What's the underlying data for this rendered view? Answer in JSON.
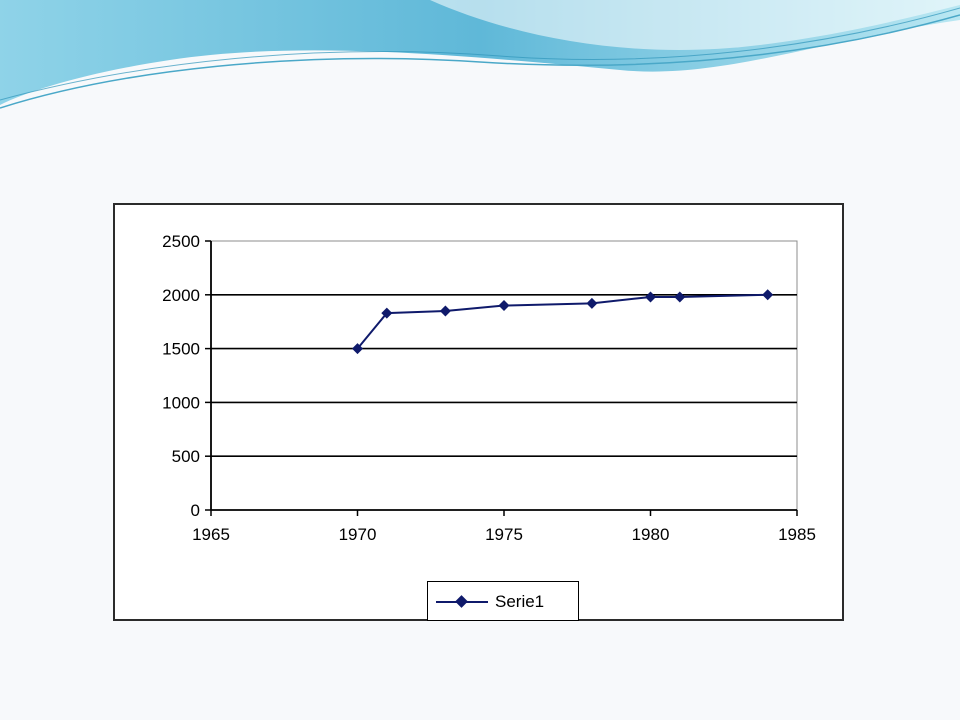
{
  "theme": {
    "banner_colors": [
      "#8fd3e8",
      "#5fb8d8",
      "#b9e7f2"
    ],
    "series_color": "#0f1a6b",
    "grid_color": "#000000",
    "plot_background": "#ffffff"
  },
  "chart_data": {
    "type": "scatter",
    "title": "",
    "xlabel": "",
    "ylabel": "",
    "xlim": [
      1965,
      1985
    ],
    "ylim": [
      0,
      2500
    ],
    "x_ticks": [
      1965,
      1970,
      1975,
      1980,
      1985
    ],
    "y_ticks": [
      0,
      500,
      1000,
      1500,
      2000,
      2500
    ],
    "grid": "horizontal",
    "legend_position": "bottom",
    "series": [
      {
        "name": "Serie1",
        "x": [
          1970,
          1971,
          1973,
          1975,
          1978,
          1980,
          1981,
          1984
        ],
        "y": [
          1500,
          1830,
          1850,
          1900,
          1920,
          1980,
          1980,
          2000
        ],
        "marker": "diamond",
        "line": true
      }
    ]
  }
}
